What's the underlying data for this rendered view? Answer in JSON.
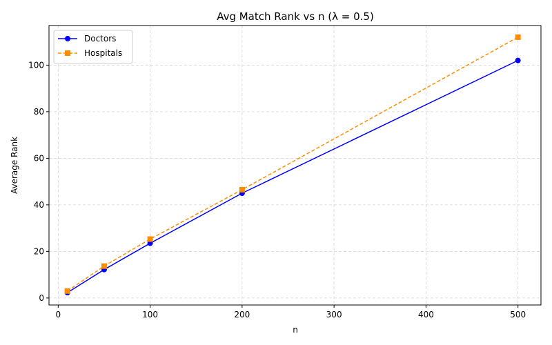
{
  "chart_data": {
    "type": "line",
    "title": "Avg Match Rank vs n (λ = 0.5)",
    "xlabel": "n",
    "ylabel": "Average Rank",
    "x": [
      10,
      50,
      100,
      200,
      500
    ],
    "xlim": [
      -10,
      525
    ],
    "ylim": [
      -3,
      117
    ],
    "xticks": [
      0,
      100,
      200,
      300,
      400,
      500
    ],
    "yticks": [
      0,
      20,
      40,
      60,
      80,
      100
    ],
    "grid": true,
    "legend_position": "top-left",
    "series": [
      {
        "name": "Doctors",
        "values": [
          2.3,
          12.2,
          23.5,
          45.0,
          102.0
        ],
        "color": "#0000ff",
        "marker": "circle",
        "line_style": "solid"
      },
      {
        "name": "Hospitals",
        "values": [
          3.0,
          13.7,
          25.3,
          46.5,
          112.0
        ],
        "color": "#ff8c00",
        "marker": "square",
        "line_style": "dashed"
      }
    ]
  }
}
